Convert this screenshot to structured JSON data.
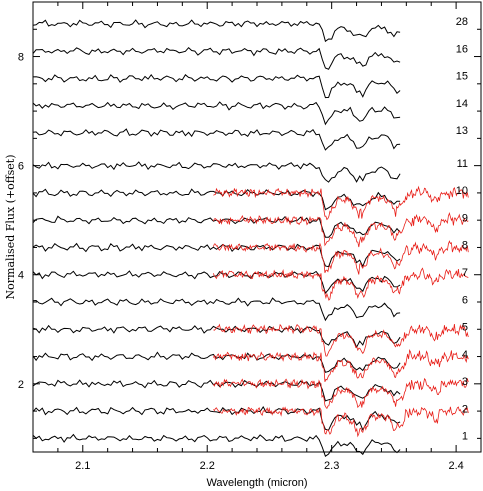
{
  "chart_data": {
    "type": "line",
    "title": "",
    "xlabel": "Wavelength (micron)",
    "ylabel": "Normalised Flux (+offset)",
    "xlim": [
      2.06,
      2.42
    ],
    "ylim": [
      0.75,
      9.0
    ],
    "x_ticks": [
      2.1,
      2.2,
      2.3,
      2.4
    ],
    "x_tick_labels": [
      "2.1",
      "2.2",
      "2.3",
      "2.4"
    ],
    "y_ticks": [
      2,
      4,
      6,
      8
    ],
    "y_tick_labels": [
      "2",
      "4",
      "6",
      "8"
    ],
    "grid": false,
    "legend": "none",
    "colors": {
      "model": "#000000",
      "observed": "#e8201a"
    },
    "model_x_range": [
      2.06,
      2.355
    ],
    "observed_x_range": [
      2.205,
      2.41
    ],
    "series": [
      {
        "label": "28",
        "offset": 8.6,
        "observed": false
      },
      {
        "label": "16",
        "offset": 8.1,
        "observed": false
      },
      {
        "label": "15",
        "offset": 7.6,
        "observed": false
      },
      {
        "label": "14",
        "offset": 7.1,
        "observed": false
      },
      {
        "label": "13",
        "offset": 6.6,
        "observed": false
      },
      {
        "label": "11",
        "offset": 6.0,
        "observed": false
      },
      {
        "label": "10",
        "offset": 5.5,
        "observed": true
      },
      {
        "label": "9",
        "offset": 5.0,
        "observed": true
      },
      {
        "label": "8",
        "offset": 4.5,
        "observed": true
      },
      {
        "label": "7",
        "offset": 4.0,
        "observed": true
      },
      {
        "label": "6",
        "offset": 3.5,
        "observed": false
      },
      {
        "label": "5",
        "offset": 3.0,
        "observed": true
      },
      {
        "label": "4",
        "offset": 2.5,
        "observed": true
      },
      {
        "label": "3",
        "offset": 2.0,
        "observed": true
      },
      {
        "label": "2",
        "offset": 1.5,
        "observed": true
      },
      {
        "label": "1",
        "offset": 1.0,
        "observed": false
      }
    ]
  }
}
